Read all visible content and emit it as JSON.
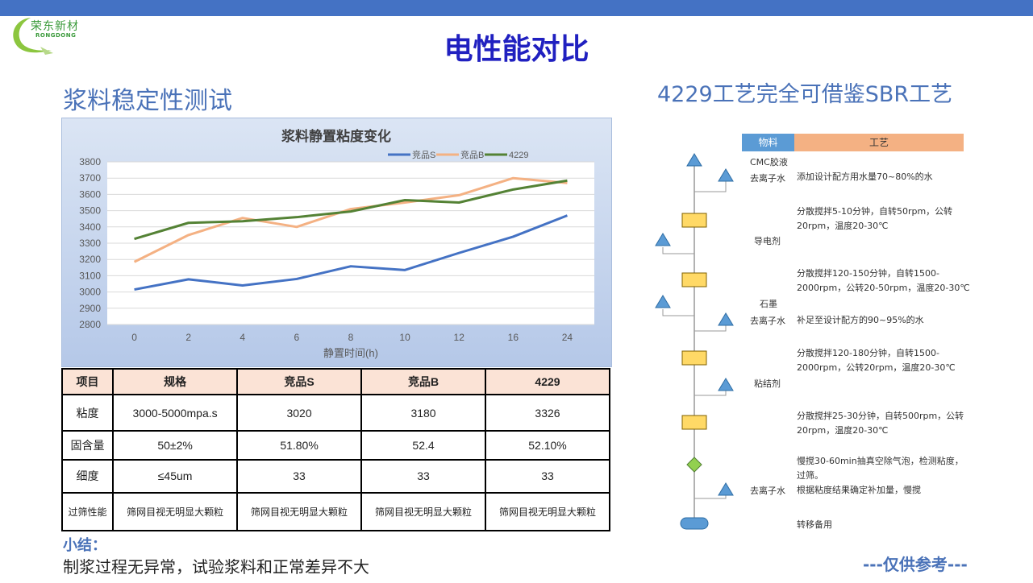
{
  "logo": {
    "name": "荣东新材",
    "sub": "RONGDONG"
  },
  "title": "电性能对比",
  "left_section": "浆料稳定性测试",
  "right_section": "4229工艺完全可借鉴SBR工艺",
  "chart_data": {
    "type": "line",
    "title": "浆料静置粘度变化",
    "xlabel": "静置时间(h)",
    "ylabel": "",
    "categories": [
      "0",
      "2",
      "4",
      "6",
      "8",
      "10",
      "12",
      "16",
      "24"
    ],
    "ylim": [
      2800,
      3800
    ],
    "yticks": [
      "3800",
      "3700",
      "3600",
      "3500",
      "3400",
      "3300",
      "3200",
      "3100",
      "3000",
      "2900",
      "2800"
    ],
    "legend_position": "top-right",
    "series": [
      {
        "name": "竞品S",
        "color": "#4472c4",
        "values": [
          3015,
          3078,
          3040,
          3080,
          3158,
          3135,
          3240,
          3340,
          3470
        ]
      },
      {
        "name": "竞品B",
        "color": "#f4b183",
        "values": [
          3185,
          3350,
          3455,
          3400,
          3510,
          3550,
          3595,
          3700,
          3670
        ]
      },
      {
        "name": "4229",
        "color": "#548235",
        "values": [
          3326,
          3425,
          3435,
          3460,
          3495,
          3565,
          3550,
          3630,
          3685
        ]
      }
    ]
  },
  "table": {
    "headers": [
      "项目",
      "规格",
      "竞品S",
      "竞品B",
      "4229"
    ],
    "rows": [
      [
        "粘度",
        "3000-5000mpa.s",
        "3020",
        "3180",
        "3326"
      ],
      [
        "固含量",
        "50±2%",
        "51.80%",
        "52.4",
        "52.10%"
      ],
      [
        "细度",
        "≤45um",
        "33",
        "33",
        "33"
      ],
      [
        "过筛性能",
        "筛网目视无明显大颗粒",
        "筛网目视无明显大颗粒",
        "筛网目视无明显大颗粒",
        "筛网目视无明显大颗粒"
      ]
    ]
  },
  "summary": {
    "title": "小结：",
    "text": "制浆过程无异常，试验浆料和正常差异不大"
  },
  "reference": "---仅供参考---",
  "process": {
    "head_material": "物料",
    "head_process": "工艺",
    "materials": [
      "CMC胶液",
      "去离子水",
      "导电剂",
      "石墨",
      "去离子水",
      "粘结剂",
      "去离子水"
    ],
    "steps": [
      "添加设计配方用水量70~80%的水",
      "分散搅拌5-10分钟，自转50rpm，公转",
      "20rpm，温度20-30℃",
      "分散搅拌120-150分钟，自转1500-",
      "2000rpm，公转20-50rpm，温度20-30℃",
      "补足至设计配方的90~95%的水",
      "分散搅拌120-180分钟，自转1500-",
      "2000rpm，公转20rpm，温度20-30℃",
      "分散搅拌25-30分钟，自转500rpm，公转",
      "20rpm，温度20-30℃",
      "慢搅30-60min抽真空除气泡，检测粘度，",
      "过筛。",
      "根据粘度结果确定补加量，慢搅",
      "转移备用"
    ]
  }
}
